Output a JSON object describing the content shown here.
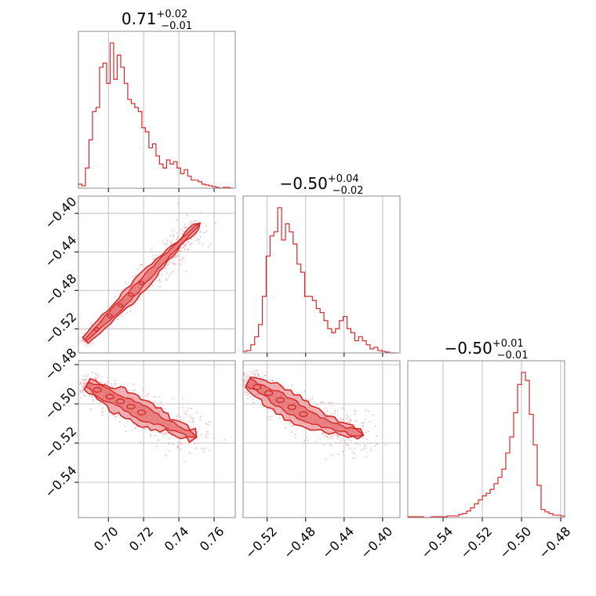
{
  "colors": {
    "main": "#d62728",
    "fill": "#ef9a9b",
    "scatter": "#f2b3b3",
    "grid": "#b0b0b0",
    "frame": "#8c8c8c"
  },
  "params": [
    {
      "median": "0.71",
      "plus": "+0.02",
      "minus": "−0.01",
      "range": [
        0.683,
        0.772
      ],
      "ticks": [
        0.7,
        0.72,
        0.74,
        0.76
      ],
      "tick_labels": [
        "0.70",
        "0.72",
        "0.74",
        "0.76"
      ]
    },
    {
      "median": "−0.50",
      "plus": "+0.04",
      "minus": "−0.02",
      "range": [
        -0.545,
        -0.382
      ],
      "ticks": [
        -0.52,
        -0.48,
        -0.44,
        -0.4
      ],
      "tick_labels": [
        "−0.52",
        "−0.48",
        "−0.44",
        "−0.40"
      ]
    },
    {
      "median": "−0.50",
      "plus": "+0.01",
      "minus": "−0.01",
      "range": [
        -0.558,
        -0.478
      ],
      "ticks": [
        -0.54,
        -0.52,
        -0.5,
        -0.48
      ],
      "tick_labels": [
        "−0.54",
        "−0.52",
        "−0.50",
        "−0.48"
      ]
    }
  ],
  "chart_data": {
    "type": "corner",
    "histograms": [
      {
        "param": 0,
        "bin_centers": [
          0.684,
          0.686,
          0.688,
          0.69,
          0.692,
          0.694,
          0.696,
          0.698,
          0.7,
          0.702,
          0.704,
          0.706,
          0.708,
          0.71,
          0.712,
          0.714,
          0.716,
          0.718,
          0.72,
          0.722,
          0.724,
          0.726,
          0.728,
          0.73,
          0.732,
          0.734,
          0.736,
          0.738,
          0.74,
          0.742,
          0.744,
          0.746,
          0.748,
          0.75,
          0.752,
          0.754,
          0.756,
          0.758,
          0.76,
          0.762,
          0.764,
          0.766,
          0.768,
          0.77
        ],
        "counts": [
          5,
          3,
          25,
          60,
          95,
          100,
          150,
          155,
          130,
          180,
          135,
          165,
          150,
          130,
          110,
          105,
          100,
          95,
          75,
          70,
          50,
          55,
          40,
          30,
          25,
          35,
          30,
          33,
          25,
          18,
          23,
          15,
          10,
          10,
          8,
          5,
          4,
          3,
          2,
          1,
          0,
          1,
          1,
          0
        ]
      },
      {
        "param": 1,
        "bin_centers": [
          -0.543,
          -0.539,
          -0.535,
          -0.531,
          -0.527,
          -0.523,
          -0.519,
          -0.515,
          -0.511,
          -0.507,
          -0.503,
          -0.499,
          -0.495,
          -0.491,
          -0.487,
          -0.483,
          -0.479,
          -0.475,
          -0.471,
          -0.467,
          -0.463,
          -0.459,
          -0.455,
          -0.451,
          -0.447,
          -0.443,
          -0.439,
          -0.435,
          -0.431,
          -0.427,
          -0.423,
          -0.419,
          -0.415,
          -0.411,
          -0.407,
          -0.403,
          -0.399,
          -0.395,
          -0.391,
          -0.387
        ],
        "counts": [
          2,
          3,
          10,
          20,
          35,
          70,
          120,
          145,
          150,
          180,
          140,
          160,
          150,
          135,
          110,
          100,
          70,
          70,
          65,
          55,
          50,
          40,
          30,
          25,
          30,
          40,
          45,
          30,
          25,
          15,
          20,
          15,
          10,
          5,
          7,
          3,
          2,
          1,
          0,
          0
        ]
      },
      {
        "param": 2,
        "bin_centers": [
          -0.557,
          -0.555,
          -0.553,
          -0.551,
          -0.549,
          -0.547,
          -0.545,
          -0.543,
          -0.541,
          -0.539,
          -0.537,
          -0.535,
          -0.533,
          -0.531,
          -0.529,
          -0.527,
          -0.525,
          -0.523,
          -0.521,
          -0.519,
          -0.517,
          -0.515,
          -0.513,
          -0.511,
          -0.509,
          -0.507,
          -0.505,
          -0.503,
          -0.501,
          -0.499,
          -0.497,
          -0.495,
          -0.493,
          -0.491,
          -0.489,
          -0.487,
          -0.485,
          -0.483,
          -0.481,
          -0.479
        ],
        "counts": [
          1,
          1,
          1,
          1,
          0,
          0,
          1,
          1,
          1,
          1,
          2,
          2,
          2,
          4,
          5,
          8,
          12,
          17,
          22,
          27,
          30,
          35,
          42,
          50,
          60,
          80,
          100,
          130,
          165,
          180,
          170,
          128,
          90,
          40,
          10,
          7,
          5,
          3,
          3,
          2
        ]
      }
    ],
    "pairs": [
      {
        "x": 0,
        "y": 1,
        "description_points": [
          [
            0.687,
            -0.532
          ],
          [
            0.7,
            -0.508
          ],
          [
            0.71,
            -0.49
          ],
          [
            0.72,
            -0.47
          ],
          [
            0.73,
            -0.45
          ],
          [
            0.742,
            -0.428
          ],
          [
            0.752,
            -0.41
          ]
        ]
      },
      {
        "x": 0,
        "y": 2,
        "description_points": [
          [
            0.688,
            -0.49
          ],
          [
            0.7,
            -0.496
          ],
          [
            0.71,
            -0.5
          ],
          [
            0.72,
            -0.505
          ],
          [
            0.73,
            -0.509
          ],
          [
            0.74,
            -0.513
          ],
          [
            0.75,
            -0.517
          ]
        ]
      },
      {
        "x": 1,
        "y": 2,
        "description_points": [
          [
            -0.54,
            -0.489
          ],
          [
            -0.52,
            -0.494
          ],
          [
            -0.5,
            -0.5
          ],
          [
            -0.48,
            -0.506
          ],
          [
            -0.46,
            -0.51
          ],
          [
            -0.44,
            -0.513
          ],
          [
            -0.42,
            -0.516
          ]
        ]
      }
    ]
  }
}
